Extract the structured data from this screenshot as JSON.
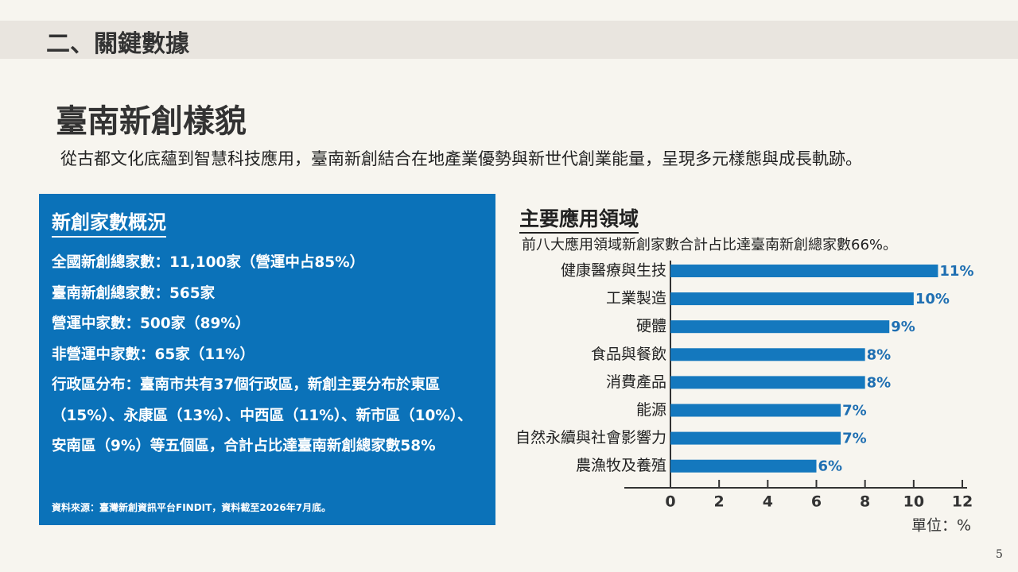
{
  "header": "二、關鍵數據",
  "title": "臺南新創樣貌",
  "subtitle": "從古都文化底蘊到智慧科技應用，臺南新創結合在地產業優勢與新世代創業能量，呈現多元樣態與成長軌跡。",
  "box": {
    "title": "新創家數概況",
    "lines": [
      "全國新創總家數：11,100家（營運中占85%）",
      "臺南新創總家數：565家",
      "營運中家數：500家（89%）",
      "非營運中家數：65家（11%）",
      "行政區分布：臺南市共有37個行政區，新創主要分布於東區（15%）、永康區（13%）、中西區（11%）、新市區（10%）、安南區（9%）等五個區，合計占比達臺南新創總家數58%"
    ],
    "source": "資料來源：臺灣新創資訊平台FINDIT，資料截至2026年7月底。"
  },
  "page_number": "5",
  "chart_data": {
    "type": "hbar",
    "title": "主要應用領域",
    "subtitle": "前八大應用領域新創家數合計占比達臺南新創總家數66%。",
    "categories": [
      "健康醫療與生技",
      "工業製造",
      "硬體",
      "食品與餐飲",
      "消費產品",
      "能源",
      "自然永續與社會影響力",
      "農漁牧及養殖"
    ],
    "values": [
      11,
      10,
      9,
      8,
      8,
      7,
      7,
      6
    ],
    "value_labels": [
      "11%",
      "10%",
      "9%",
      "8%",
      "8%",
      "7%",
      "7%",
      "6%"
    ],
    "color": "#1478be",
    "label_color": "#1f6fb2",
    "xlim": [
      0,
      12
    ],
    "xticks": [
      0,
      2,
      4,
      6,
      8,
      10,
      12
    ],
    "x_label": "單位：%"
  }
}
